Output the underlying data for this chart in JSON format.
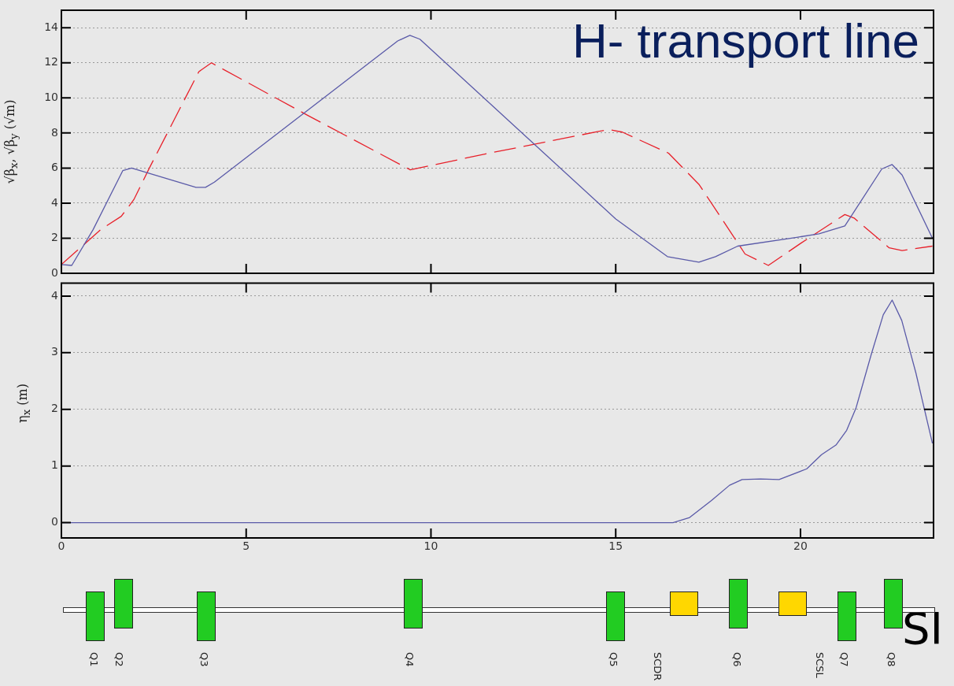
{
  "chart_data": [
    {
      "type": "line",
      "title": "H- transport line",
      "ylabel": "√β$_{x}$,  √β$_{y}$  (√m)",
      "xlim": [
        0,
        23.6
      ],
      "xticks": [
        0,
        5,
        10,
        15,
        20
      ],
      "ylim": [
        0,
        15
      ],
      "yticks": [
        0,
        2,
        4,
        6,
        8,
        10,
        12,
        14
      ],
      "grid": "y",
      "legend": false,
      "marker": "none",
      "tick_labels": "y",
      "series": [
        {
          "color": "#5a5aa8",
          "line_style": "solid",
          "x": [
            0,
            0.28,
            0.86,
            1.66,
            1.9,
            3.64,
            3.9,
            4.14,
            9.1,
            9.43,
            9.7,
            15.0,
            16.4,
            17.25,
            17.7,
            18.3,
            19.9,
            20.5,
            21.2,
            22.2,
            22.48,
            22.75,
            23.57
          ],
          "values": [
            0.5,
            0.45,
            2.5,
            5.85,
            6.0,
            4.9,
            4.9,
            5.2,
            13.25,
            13.57,
            13.35,
            3.1,
            0.95,
            0.63,
            0.95,
            1.55,
            2.05,
            2.25,
            2.7,
            5.95,
            6.2,
            5.6,
            2.0
          ]
        },
        {
          "color": "#e8202a",
          "line_style": "dashed",
          "x": [
            0,
            1.07,
            1.62,
            1.96,
            2.38,
            3.72,
            4.06,
            6.67,
            9.44,
            11.46,
            14.8,
            15.18,
            16.43,
            17.26,
            18.5,
            19.13,
            20.0,
            21.2,
            21.45,
            22.4,
            22.75,
            23.57
          ],
          "values": [
            0.5,
            2.5,
            3.25,
            4.2,
            6.0,
            11.5,
            12.0,
            9.0,
            5.9,
            6.8,
            8.2,
            8.05,
            6.85,
            5.05,
            1.1,
            0.45,
            1.7,
            3.35,
            3.15,
            1.45,
            1.3,
            1.55
          ]
        }
      ]
    },
    {
      "type": "line",
      "ylabel": "η$_{x}$  (m)",
      "xlim": [
        0,
        23.6
      ],
      "xticks": [
        0,
        5,
        10,
        15,
        20
      ],
      "ylim": [
        -0.27,
        4.23
      ],
      "yticks": [
        0,
        1,
        2,
        3,
        4
      ],
      "grid": "y",
      "legend": false,
      "marker": "none",
      "series": [
        {
          "color": "#5a5aa8",
          "line_style": "solid",
          "x": [
            0,
            16.55,
            17.0,
            17.59,
            18.08,
            18.42,
            18.92,
            19.42,
            20.17,
            20.57,
            20.96,
            21.25,
            21.5,
            21.91,
            22.24,
            22.48,
            22.74,
            23.12,
            23.57
          ],
          "values": [
            0,
            0,
            0.09,
            0.39,
            0.66,
            0.76,
            0.77,
            0.76,
            0.95,
            1.2,
            1.37,
            1.63,
            2.02,
            2.96,
            3.67,
            3.93,
            3.57,
            2.65,
            1.4
          ]
        }
      ],
      "annotations": [
        "Q1",
        "Q2",
        "Q3",
        "Q4",
        "Q5",
        "SCDR",
        "Q6",
        "SCSL",
        "Q7",
        "Q8",
        "SI"
      ]
    }
  ]
}
